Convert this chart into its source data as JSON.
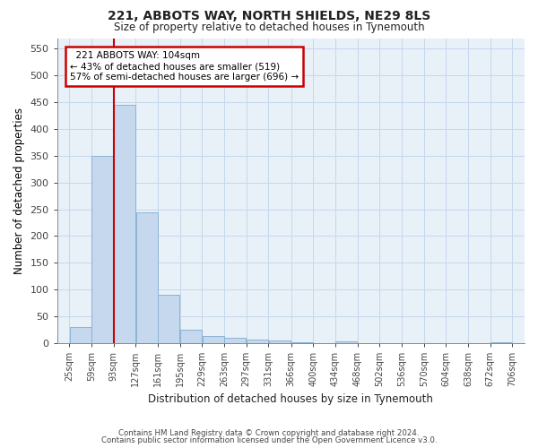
{
  "title": "221, ABBOTS WAY, NORTH SHIELDS, NE29 8LS",
  "subtitle": "Size of property relative to detached houses in Tynemouth",
  "xlabel": "Distribution of detached houses by size in Tynemouth",
  "ylabel": "Number of detached properties",
  "footer_line1": "Contains HM Land Registry data © Crown copyright and database right 2024.",
  "footer_line2": "Contains public sector information licensed under the Open Government Licence v3.0.",
  "bin_edges": [
    25,
    59,
    93,
    127,
    161,
    195,
    229,
    263,
    297,
    331,
    366,
    400,
    434,
    468,
    502,
    536,
    570,
    604,
    638,
    672,
    706
  ],
  "bin_labels": [
    "25sqm",
    "59sqm",
    "93sqm",
    "127sqm",
    "161sqm",
    "195sqm",
    "229sqm",
    "263sqm",
    "297sqm",
    "331sqm",
    "366sqm",
    "400sqm",
    "434sqm",
    "468sqm",
    "502sqm",
    "536sqm",
    "570sqm",
    "604sqm",
    "638sqm",
    "672sqm",
    "706sqm"
  ],
  "bar_values": [
    30,
    350,
    445,
    245,
    90,
    25,
    13,
    10,
    7,
    5,
    2,
    0,
    3,
    0,
    0,
    0,
    0,
    0,
    0,
    2
  ],
  "bar_color": "#c5d8ed",
  "bar_edge_color": "#8ab4d4",
  "property_line_x": 93,
  "property_size": 104,
  "annotation_title": "221 ABBOTS WAY: 104sqm",
  "annotation_line1": "← 43% of detached houses are smaller (519)",
  "annotation_line2": "57% of semi-detached houses are larger (696) →",
  "annotation_box_color": "#ffffff",
  "annotation_border_color": "#cc0000",
  "red_line_color": "#cc0000",
  "ylim": [
    0,
    570
  ],
  "yticks": [
    0,
    50,
    100,
    150,
    200,
    250,
    300,
    350,
    400,
    450,
    500,
    550
  ],
  "grid_color": "#c5d8ed",
  "figure_bg_color": "#ffffff",
  "plot_bg_color": "#e8f0f8"
}
